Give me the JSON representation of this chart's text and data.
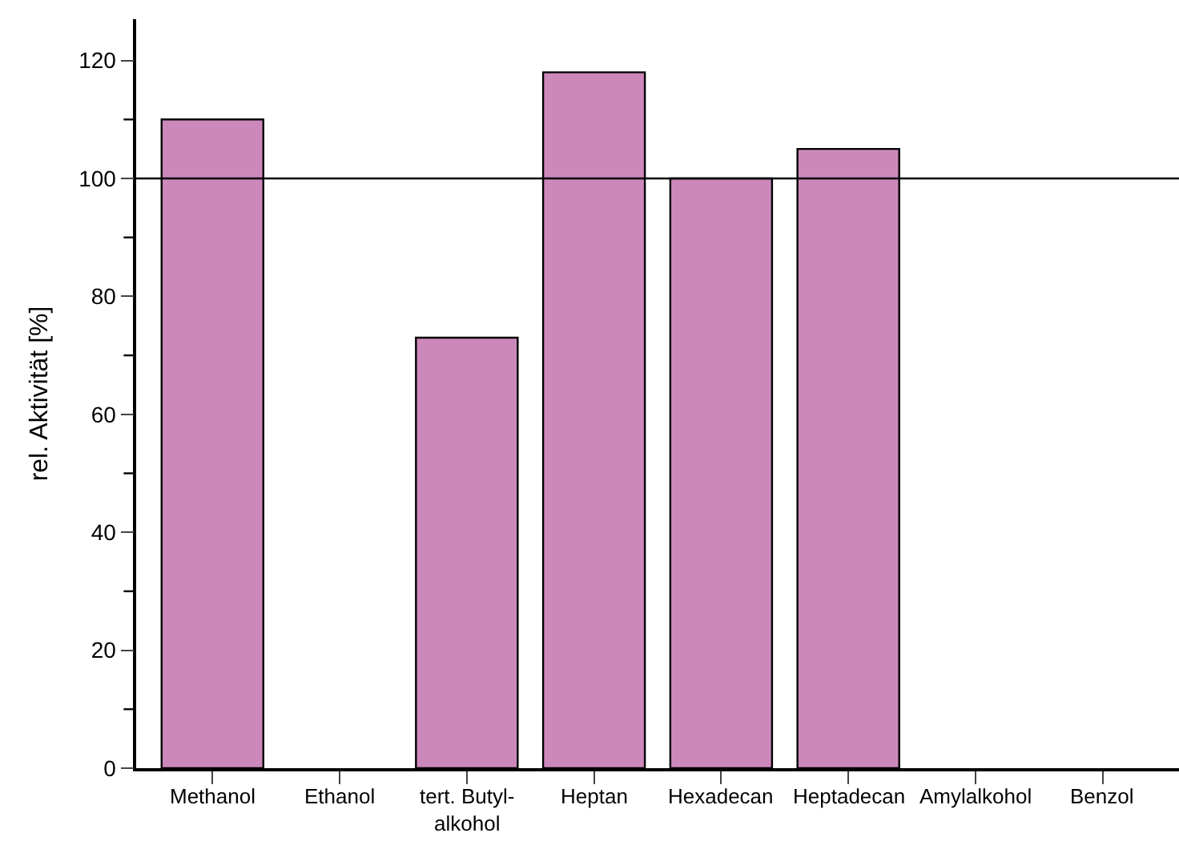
{
  "chart_data": {
    "type": "bar",
    "ylabel": "rel. Aktivität [%]",
    "categories": [
      "Methanol",
      "Ethanol",
      "tert. Butyl-\nalkohol",
      "Heptan",
      "Hexadecan",
      "Heptadecan",
      "Amylalkohol",
      "Benzol"
    ],
    "values": [
      110,
      null,
      73,
      118,
      100,
      105,
      null,
      null
    ],
    "color": "#cc88bb",
    "ylim": [
      0,
      127
    ],
    "yticks": [
      0,
      {
        "value": 10,
        "label": null
      },
      20,
      {
        "value": 30,
        "label": null
      },
      40,
      {
        "value": 50,
        "label": null
      },
      60,
      {
        "value": 70,
        "label": null
      },
      80,
      {
        "value": 90,
        "label": null
      },
      100,
      {
        "value": 110,
        "label": null
      },
      120
    ],
    "ref_lines": [
      {
        "axis": "y",
        "value": 100,
        "color": "#000000"
      }
    ]
  }
}
